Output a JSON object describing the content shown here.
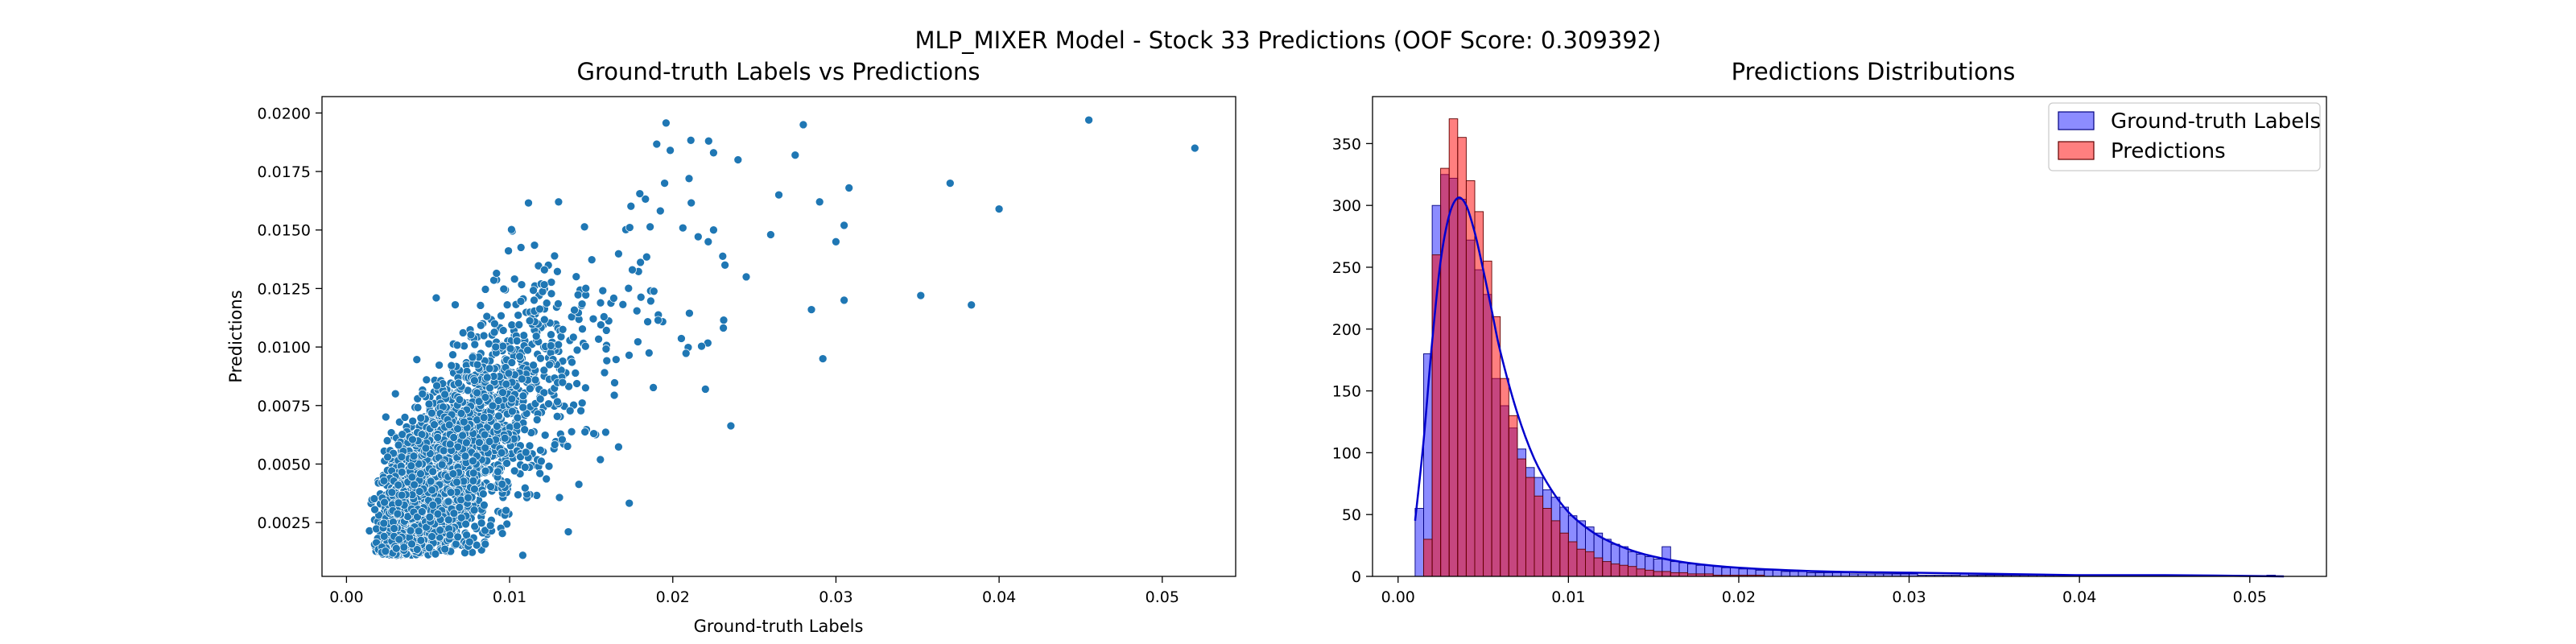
{
  "figure": {
    "suptitle": "MLP_MIXER Model - Stock 33 Predictions (OOF Score: 0.309392)"
  },
  "colors": {
    "scatter": "#1f77b4",
    "truth": "#0000ff",
    "pred": "#ff0000",
    "kde": "#0000cc"
  },
  "chart_data": [
    {
      "type": "scatter",
      "title": "Ground-truth Labels vs Predictions",
      "xlabel": "Ground-truth Labels",
      "ylabel": "Predictions",
      "xlim": [
        -0.0015,
        0.0545
      ],
      "ylim": [
        0.0002,
        0.0207
      ],
      "xticks": [
        "0.00",
        "0.01",
        "0.02",
        "0.03",
        "0.04",
        "0.05"
      ],
      "yticks": [
        "0.0025",
        "0.0050",
        "0.0075",
        "0.0100",
        "0.0125",
        "0.0150",
        "0.0175",
        "0.0200"
      ],
      "grid": false,
      "points": [
        [
          0.0455,
          0.0197
        ],
        [
          0.052,
          0.0185
        ],
        [
          0.04,
          0.0159
        ],
        [
          0.037,
          0.017
        ],
        [
          0.0383,
          0.0118
        ],
        [
          0.0352,
          0.0122
        ],
        [
          0.0305,
          0.012
        ],
        [
          0.0292,
          0.0095
        ],
        [
          0.028,
          0.0195
        ],
        [
          0.0222,
          0.0188
        ],
        [
          0.022,
          0.0082
        ],
        [
          0.0225,
          0.0183
        ],
        [
          0.029,
          0.0162
        ],
        [
          0.0305,
          0.0152
        ],
        [
          0.0308,
          0.0168
        ],
        [
          0.0265,
          0.0165
        ],
        [
          0.0275,
          0.0182
        ],
        [
          0.024,
          0.018
        ],
        [
          0.013,
          0.0162
        ],
        [
          0.021,
          0.0172
        ],
        [
          0.0195,
          0.017
        ],
        [
          0.03,
          0.0145
        ],
        [
          0.0285,
          0.0116
        ],
        [
          0.0245,
          0.013
        ],
        [
          0.026,
          0.0148
        ],
        [
          0.0225,
          0.015
        ],
        [
          0.0232,
          0.0135
        ],
        [
          0.0115,
          0.012
        ],
        [
          0.0055,
          0.0121
        ],
        [
          0.0072,
          0.0068
        ],
        [
          0.011,
          0.0055
        ],
        [
          0.003,
          0.008
        ],
        [
          0.0025,
          0.006
        ]
      ],
      "cloud_note": "dense cloud of roughly 3000 points concentrated near the origin, trending upward"
    },
    {
      "type": "histogram",
      "title": "Predictions Distributions",
      "xlim": [
        -0.0015,
        0.0545
      ],
      "ylim": [
        0,
        388
      ],
      "xticks": [
        "0.00",
        "0.01",
        "0.02",
        "0.03",
        "0.04",
        "0.05"
      ],
      "yticks": [
        "0",
        "50",
        "100",
        "150",
        "200",
        "250",
        "300",
        "350"
      ],
      "legend_position": "upper right",
      "bin_width": 0.0005,
      "series": [
        {
          "name": "Ground-truth Labels",
          "bin_start": 0.001,
          "counts": [
            55,
            180,
            300,
            325,
            322,
            305,
            272,
            248,
            228,
            160,
            138,
            120,
            103,
            88,
            80,
            70,
            64,
            56,
            49,
            45,
            40,
            35,
            30,
            26,
            24,
            20,
            18,
            16,
            14,
            24,
            12,
            11,
            10,
            9,
            9,
            8,
            7,
            7,
            6,
            6,
            5,
            5,
            5,
            4,
            4,
            4,
            3,
            3,
            3,
            3,
            3,
            2,
            2,
            2,
            2,
            2,
            2,
            2,
            2,
            1,
            1,
            1,
            1,
            1,
            2,
            1,
            1,
            1,
            1,
            1,
            1,
            1,
            1,
            1,
            1,
            0,
            1,
            0,
            1,
            0,
            0,
            1,
            0,
            0,
            0,
            1,
            0,
            0,
            1,
            0,
            0,
            0,
            1,
            0,
            0,
            0,
            0,
            0,
            0,
            0,
            1,
            0
          ]
        },
        {
          "name": "Predictions",
          "bin_start": 0.0015,
          "counts": [
            30,
            260,
            330,
            370,
            355,
            320,
            295,
            255,
            210,
            160,
            130,
            95,
            80,
            65,
            55,
            45,
            35,
            28,
            22,
            20,
            15,
            12,
            10,
            9,
            8,
            6,
            5,
            4,
            4,
            3,
            3,
            2,
            2,
            2,
            1,
            1,
            1,
            1,
            1,
            1
          ]
        }
      ],
      "kde": {
        "x": [
          0.001,
          0.0015,
          0.002,
          0.0025,
          0.003,
          0.0035,
          0.004,
          0.0045,
          0.005,
          0.0055,
          0.006,
          0.007,
          0.008,
          0.009,
          0.01,
          0.011,
          0.012,
          0.0135,
          0.015,
          0.017,
          0.02,
          0.025,
          0.03,
          0.035,
          0.04,
          0.045,
          0.052
        ],
        "y": [
          45,
          110,
          190,
          255,
          292,
          306,
          300,
          278,
          248,
          215,
          182,
          132,
          95,
          70,
          52,
          40,
          31,
          22,
          16,
          11,
          7,
          4,
          3,
          2,
          1,
          1,
          0
        ]
      }
    }
  ]
}
